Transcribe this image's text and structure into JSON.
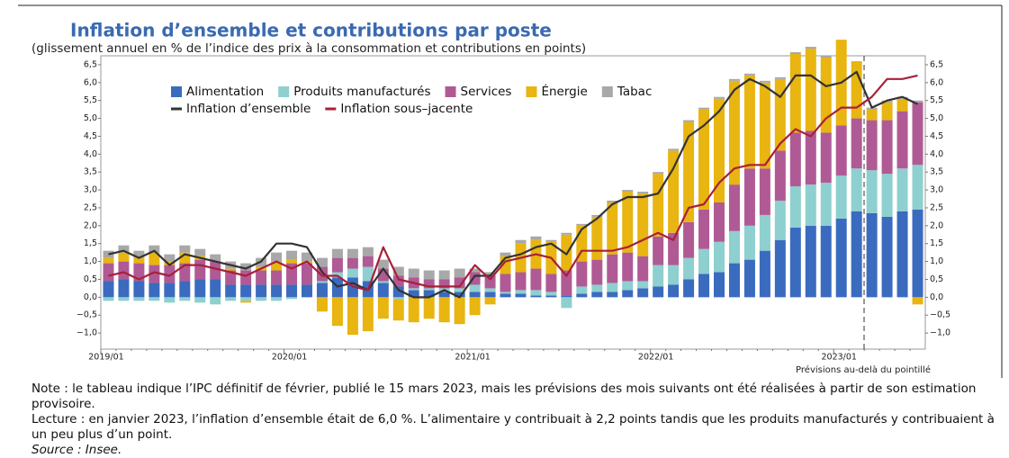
{
  "chart_data": {
    "type": "bar",
    "title": "Inflation d’ensemble et contributions par poste",
    "subtitle": "(glissement annuel en % de l’indice des prix à la consommation et contributions en points)",
    "annotation": "Prévisions au-delà du pointillé",
    "categories": [
      "2019/01",
      null,
      null,
      null,
      null,
      null,
      null,
      null,
      null,
      null,
      null,
      null,
      "2020/01",
      null,
      null,
      null,
      null,
      null,
      null,
      null,
      null,
      null,
      null,
      null,
      "2021/01",
      null,
      null,
      null,
      null,
      null,
      null,
      null,
      null,
      null,
      null,
      null,
      "2022/01",
      null,
      null,
      null,
      null,
      null,
      null,
      null,
      null,
      null,
      null,
      null,
      "2023/01",
      null,
      null,
      null,
      null,
      null
    ],
    "ylim": [
      -1.45,
      6.75
    ],
    "yticks": [
      {
        "value": -1.0,
        "label": "−1,0"
      },
      {
        "value": -0.5,
        "label": "−0,5"
      },
      {
        "value": 0,
        "label": "0,0"
      },
      {
        "value": 0.5,
        "label": "0,5"
      },
      {
        "value": 1.0,
        "label": "1,0"
      },
      {
        "value": 1.5,
        "label": "1,5"
      },
      {
        "value": 2.0,
        "label": "2,0"
      },
      {
        "value": 2.5,
        "label": "2,5"
      },
      {
        "value": 3.0,
        "label": "3,0"
      },
      {
        "value": 3.5,
        "label": "3,5"
      },
      {
        "value": 4.0,
        "label": "4,0"
      },
      {
        "value": 4.5,
        "label": "4,5"
      },
      {
        "value": 5.0,
        "label": "5,0"
      },
      {
        "value": 5.5,
        "label": "5,5"
      },
      {
        "value": 6.0,
        "label": "6,0"
      },
      {
        "value": 6.5,
        "label": "6,5"
      }
    ],
    "series": [
      {
        "name": "Alimentation",
        "type": "bar",
        "color": "#3a6bbf",
        "values": [
          0.45,
          0.5,
          0.45,
          0.4,
          0.4,
          0.45,
          0.5,
          0.5,
          0.35,
          0.35,
          0.35,
          0.35,
          0.35,
          0.35,
          0.4,
          0.55,
          0.55,
          0.45,
          0.4,
          0.3,
          0.2,
          0.2,
          0.15,
          0.15,
          0.15,
          0.15,
          0.1,
          0.1,
          0.05,
          0.05,
          0.05,
          0.1,
          0.15,
          0.15,
          0.2,
          0.25,
          0.3,
          0.35,
          0.5,
          0.65,
          0.7,
          0.95,
          1.05,
          1.3,
          1.6,
          1.95,
          2.0,
          2.0,
          2.2,
          2.4,
          2.35,
          2.25,
          2.4,
          2.45
        ]
      },
      {
        "name": "Produits manufacturés",
        "type": "bar",
        "color": "#8ecfcf",
        "values": [
          -0.1,
          -0.1,
          -0.1,
          -0.1,
          -0.15,
          -0.1,
          -0.15,
          -0.2,
          -0.1,
          -0.1,
          -0.1,
          -0.1,
          -0.05,
          0.0,
          0.05,
          0.15,
          0.25,
          0.4,
          0.05,
          -0.05,
          0.05,
          0.05,
          0.1,
          0.1,
          0.2,
          0.1,
          0.05,
          0.1,
          0.15,
          0.1,
          -0.3,
          0.2,
          0.2,
          0.25,
          0.25,
          0.2,
          0.6,
          0.55,
          0.6,
          0.7,
          0.85,
          0.9,
          0.95,
          1.0,
          1.1,
          1.15,
          1.15,
          1.2,
          1.2,
          1.2,
          1.2,
          1.2,
          1.2,
          1.25
        ]
      },
      {
        "name": "Services",
        "type": "bar",
        "color": "#b05a95",
        "values": [
          0.5,
          0.5,
          0.5,
          0.5,
          0.5,
          0.5,
          0.55,
          0.5,
          0.4,
          0.4,
          0.4,
          0.4,
          0.6,
          0.6,
          0.4,
          0.4,
          0.3,
          0.3,
          0.35,
          0.3,
          0.3,
          0.25,
          0.25,
          0.3,
          0.35,
          0.35,
          0.5,
          0.5,
          0.6,
          0.5,
          0.7,
          0.7,
          0.7,
          0.8,
          0.8,
          0.7,
          0.8,
          0.9,
          1.0,
          1.1,
          1.1,
          1.3,
          1.6,
          1.3,
          1.4,
          1.5,
          1.5,
          1.4,
          1.4,
          1.4,
          1.4,
          1.5,
          1.6,
          1.75
        ]
      },
      {
        "name": "Énergie",
        "type": "bar",
        "color": "#e8b511",
        "values": [
          0.15,
          0.25,
          0.15,
          0.35,
          0.1,
          0.3,
          0.1,
          0.0,
          0.05,
          -0.05,
          0.1,
          0.25,
          0.1,
          0.05,
          -0.4,
          -0.8,
          -1.05,
          -0.95,
          -0.6,
          -0.6,
          -0.7,
          -0.6,
          -0.7,
          -0.75,
          -0.5,
          -0.2,
          0.5,
          0.8,
          0.8,
          0.9,
          1.0,
          1.0,
          1.2,
          1.45,
          1.7,
          1.75,
          1.75,
          2.3,
          2.8,
          2.8,
          2.9,
          2.9,
          2.6,
          2.4,
          2.0,
          2.2,
          2.3,
          2.1,
          2.4,
          1.6,
          0.3,
          0.5,
          0.35,
          -0.2
        ]
      },
      {
        "name": "Tabac",
        "type": "bar",
        "color": "#a8a8a8",
        "values": [
          0.2,
          0.2,
          0.2,
          0.2,
          0.2,
          0.2,
          0.2,
          0.2,
          0.2,
          0.2,
          0.25,
          0.25,
          0.25,
          0.25,
          0.25,
          0.25,
          0.25,
          0.25,
          0.25,
          0.25,
          0.25,
          0.25,
          0.25,
          0.25,
          0.1,
          0.1,
          0.1,
          0.1,
          0.1,
          0.05,
          0.05,
          0.05,
          0.05,
          0.05,
          0.05,
          0.05,
          0.05,
          0.05,
          0.05,
          0.05,
          0.05,
          0.05,
          0.05,
          0.05,
          0.05,
          0.05,
          0.05,
          0.05,
          0.0,
          0.0,
          0.05,
          0.05,
          0.05,
          0.05
        ]
      },
      {
        "name": "Inflation d’ensemble",
        "type": "line",
        "color": "#333333",
        "values": [
          1.2,
          1.3,
          1.1,
          1.3,
          0.9,
          1.2,
          1.1,
          1.0,
          0.9,
          0.8,
          1.0,
          1.5,
          1.5,
          1.4,
          0.7,
          0.3,
          0.4,
          0.2,
          0.8,
          0.2,
          0.0,
          0.0,
          0.2,
          0.0,
          0.6,
          0.6,
          1.1,
          1.2,
          1.4,
          1.5,
          1.2,
          1.9,
          2.2,
          2.6,
          2.8,
          2.8,
          2.9,
          3.6,
          4.5,
          4.8,
          5.2,
          5.8,
          6.1,
          5.9,
          5.6,
          6.2,
          6.2,
          5.9,
          6.0,
          6.3,
          5.3,
          5.5,
          5.6,
          5.4
        ]
      },
      {
        "name": "Inflation sous–jacente",
        "type": "line",
        "color": "#a8203a",
        "values": [
          0.6,
          0.7,
          0.5,
          0.7,
          0.6,
          0.9,
          0.9,
          0.8,
          0.7,
          0.6,
          0.8,
          1.0,
          0.8,
          1.0,
          0.6,
          0.6,
          0.3,
          0.2,
          1.4,
          0.5,
          0.4,
          0.3,
          0.3,
          0.3,
          0.9,
          0.5,
          1.0,
          1.1,
          1.2,
          1.1,
          0.6,
          1.3,
          1.3,
          1.3,
          1.4,
          1.6,
          1.8,
          1.6,
          2.5,
          2.6,
          3.2,
          3.6,
          3.7,
          3.7,
          4.3,
          4.7,
          4.5,
          5.0,
          5.3,
          5.3,
          5.6,
          6.1,
          6.1,
          6.2
        ]
      }
    ]
  },
  "notes": [
    "Note : le tableau indique l’IPC définitif de février, publié le 15 mars 2023, mais les prévisions des mois suivants ont été réalisées à partir de son estimation provisoire.",
    "Lecture : en janvier 2023, l’inflation d’ensemble était de 6,0 %. L’alimentaire y contribuait à 2,2 points tandis que les produits manufacturés y contribuaient à un peu plus d’un point.",
    "Source : Insee."
  ]
}
